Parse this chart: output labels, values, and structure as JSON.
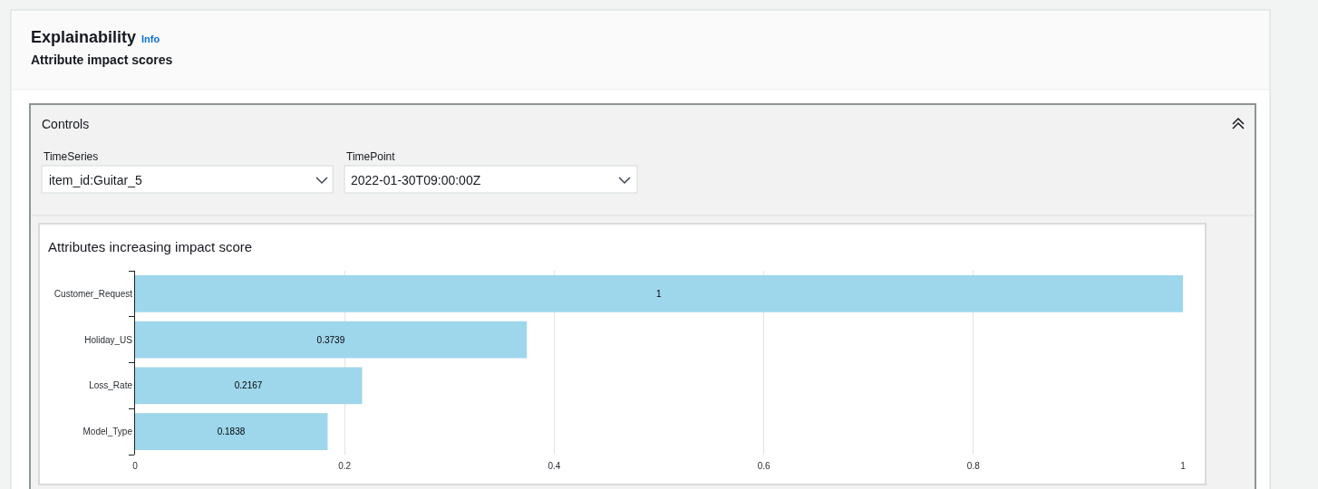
{
  "chart_data": {
    "type": "bar",
    "orientation": "horizontal",
    "title": "Attributes increasing impact score",
    "categories": [
      "Customer_Request",
      "Holiday_US",
      "Loss_Rate",
      "Model_Type"
    ],
    "values": [
      1,
      0.3739,
      0.2167,
      0.1838
    ],
    "color": "#9ed6ec",
    "xlim": [
      0,
      1
    ],
    "xticks": [
      0,
      0.2,
      0.4,
      0.6,
      0.8,
      1
    ],
    "grid": "x",
    "data_labels": true,
    "annotations": [
      "Explainability",
      "Info",
      "Attribute impact scores",
      "Controls",
      "TimeSeries",
      "item_id:Guitar_5",
      "TimePoint",
      "2022-01-30T09:00:00Z"
    ]
  }
}
